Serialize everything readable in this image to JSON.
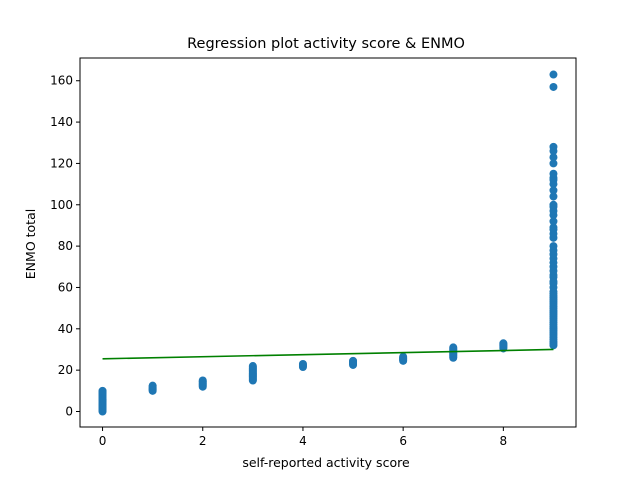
{
  "chart_data": {
    "type": "scatter",
    "title": "Regression plot activity score & ENMO",
    "xlabel": "self-reported activity score",
    "ylabel": "ENMO total",
    "xlim": [
      -0.45,
      9.45
    ],
    "ylim": [
      -7.5,
      171
    ],
    "xticks": [
      0,
      2,
      4,
      6,
      8
    ],
    "yticks": [
      0,
      20,
      40,
      60,
      80,
      100,
      120,
      140,
      160
    ],
    "grid": false,
    "colors": {
      "points": "#1f77b4",
      "regression": "#008000"
    },
    "scatter_groups": [
      {
        "x": 0,
        "y": [
          0,
          0.5,
          1,
          1.5,
          2,
          2.5,
          3,
          3.5,
          4,
          4.5,
          5,
          5.5,
          6,
          6.5,
          7,
          7.5,
          8,
          8.5,
          9,
          9.5,
          10
        ]
      },
      {
        "x": 1,
        "y": [
          10,
          10.5,
          11,
          11.5,
          12,
          12.5
        ]
      },
      {
        "x": 2,
        "y": [
          12,
          12.5,
          13,
          13.5,
          14,
          14.5,
          15
        ]
      },
      {
        "x": 3,
        "y": [
          15,
          15.5,
          16,
          16.5,
          17,
          17.5,
          18,
          18.5,
          19,
          19.5,
          20,
          20.5,
          21,
          21.5,
          22
        ]
      },
      {
        "x": 4,
        "y": [
          21.5,
          22,
          22.5,
          23
        ]
      },
      {
        "x": 5,
        "y": [
          22.5,
          23,
          23.5,
          24,
          24.5
        ]
      },
      {
        "x": 6,
        "y": [
          24.5,
          25,
          25.5,
          26,
          26.5
        ]
      },
      {
        "x": 7,
        "y": [
          26,
          26.5,
          27,
          27.5,
          28,
          28.5,
          29,
          29.5,
          30,
          30.5,
          31
        ]
      },
      {
        "x": 8,
        "y": [
          30.5,
          31,
          31.5,
          32,
          32.5,
          33
        ]
      },
      {
        "x": 9,
        "y": [
          32,
          33,
          34,
          35,
          36,
          37,
          38,
          39,
          40,
          41,
          42,
          43,
          44,
          45,
          46,
          47,
          48,
          49,
          50,
          51,
          52,
          53,
          54,
          55,
          56,
          57,
          58,
          60,
          62,
          63,
          65,
          66,
          68,
          70,
          72,
          74,
          76,
          78,
          80,
          84,
          86,
          88,
          89,
          92,
          95,
          97,
          99,
          100,
          104,
          107,
          110,
          112,
          113,
          115,
          120,
          123,
          126,
          128,
          157,
          163
        ]
      }
    ],
    "regression_line": {
      "x": [
        0,
        9
      ],
      "y": [
        25.5,
        30
      ]
    }
  }
}
